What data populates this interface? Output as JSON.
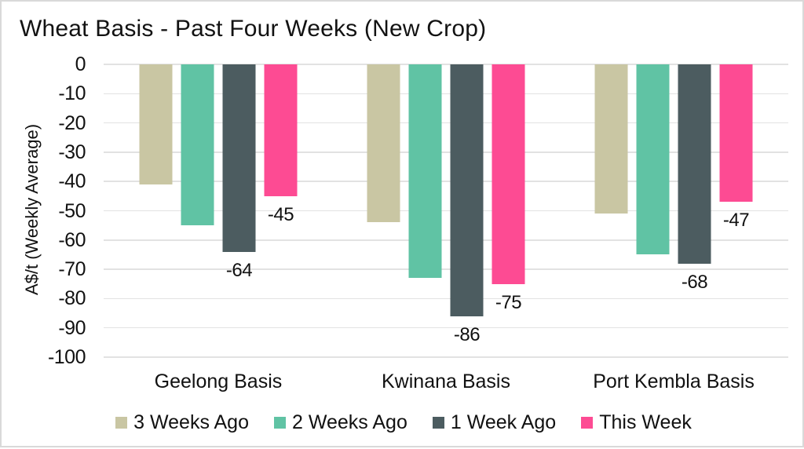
{
  "page": {
    "title": "Wheat Basis - Past Four Weeks (New Crop)"
  },
  "chart_data": {
    "type": "bar",
    "title": "Wheat Basis - Past Four Weeks (New Crop)",
    "ylabel": "A$/t (Weekly Average)",
    "xlabel": "",
    "ylim": [
      -100,
      0
    ],
    "yticks": [
      0,
      -10,
      -20,
      -30,
      -40,
      -50,
      -60,
      -70,
      -80,
      -90,
      -100
    ],
    "grid": true,
    "legend_position": "bottom",
    "categories": [
      "Geelong Basis",
      "Kwinana Basis",
      "Port Kembla Basis"
    ],
    "series": [
      {
        "name": "3 Weeks Ago",
        "color": "#C9C6A3",
        "values": [
          -41,
          -54,
          -51
        ],
        "data_labels": null
      },
      {
        "name": "2 Weeks Ago",
        "color": "#60C3A4",
        "values": [
          -55,
          -73,
          -65
        ],
        "data_labels": null
      },
      {
        "name": "1 Week Ago",
        "color": "#4C5C60",
        "values": [
          -64,
          -86,
          -68
        ],
        "data_labels": [
          "-64",
          "-86",
          "-68"
        ]
      },
      {
        "name": "This Week",
        "color": "#FD4B93",
        "values": [
          -45,
          -75,
          -47
        ],
        "data_labels": [
          "-45",
          "-75",
          "-47"
        ]
      }
    ],
    "colors": {
      "grid": "#E2E2E2",
      "text": "#111111",
      "border": "#D9D9D9",
      "background": "#FFFFFF"
    }
  }
}
